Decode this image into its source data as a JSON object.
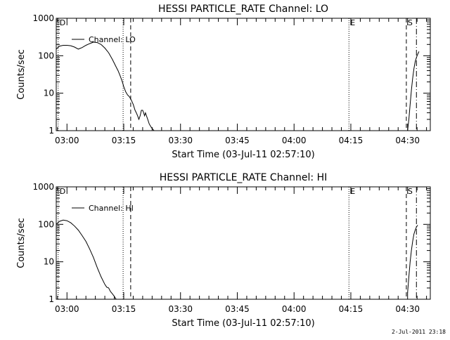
{
  "footer_date": "2-Jul-2011 23:18",
  "chart_data": [
    {
      "type": "line",
      "title": "HESSI PARTICLE_RATE Channel: LO",
      "xlabel": "Start Time (03-Jul-11 02:57:10)",
      "ylabel": "Counts/sec",
      "yscale": "log",
      "xlim": [
        "02:57:10",
        "04:36:00"
      ],
      "ylim": [
        1,
        1000
      ],
      "xticks": [
        "03:00",
        "03:15",
        "03:30",
        "03:45",
        "04:00",
        "04:15",
        "04:30"
      ],
      "yticks": [
        "1",
        "10",
        "100",
        "1000"
      ],
      "legend": {
        "label": "Channel: LO",
        "placement": "top-left"
      },
      "markers": [
        {
          "time": "02:57:40",
          "style": "dotted",
          "label": "D"
        },
        {
          "time": "03:14:50",
          "style": "dotted",
          "label": ""
        },
        {
          "time": "03:16:50",
          "style": "dashed",
          "label": ""
        },
        {
          "time": "04:14:30",
          "style": "dotted",
          "label": "E"
        },
        {
          "time": "04:29:40",
          "style": "dashed",
          "label": "S"
        },
        {
          "time": "04:32:20",
          "style": "dashdot",
          "label": ""
        }
      ],
      "series": [
        {
          "segments": [
            {
              "x": [
                "02:57:10",
                "02:58:00",
                "02:59:00",
                "03:00:00",
                "03:01:00",
                "03:02:00",
                "03:03:00",
                "03:04:00",
                "03:05:00",
                "03:06:00",
                "03:07:00",
                "03:08:00",
                "03:09:00",
                "03:10:00",
                "03:11:00",
                "03:12:00",
                "03:13:00",
                "03:13:30",
                "03:14:00",
                "03:14:30",
                "03:15:00",
                "03:15:30",
                "03:16:00",
                "03:16:30",
                "03:17:00",
                "03:17:30",
                "03:18:00",
                "03:18:20",
                "03:18:40",
                "03:19:00",
                "03:19:20",
                "03:19:40",
                "03:20:00",
                "03:20:15",
                "03:20:30",
                "03:20:45",
                "03:21:00",
                "03:21:20",
                "03:21:45",
                "03:22:20",
                "03:23:00"
              ],
              "y": [
                150,
                180,
                190,
                190,
                185,
                170,
                150,
                165,
                190,
                210,
                230,
                225,
                200,
                160,
                120,
                80,
                50,
                40,
                30,
                22,
                15,
                11,
                9,
                8,
                6.5,
                5,
                3.5,
                3,
                2.5,
                2,
                2.5,
                3.5,
                3.5,
                3,
                2.5,
                3,
                2.5,
                2,
                1.5,
                1.2,
                1
              ]
            },
            {
              "x": [
                "04:30:00",
                "04:30:20",
                "04:30:40",
                "04:31:00",
                "04:31:20",
                "04:31:40",
                "04:32:00",
                "04:32:20",
                "04:32:40",
                "04:33:00"
              ],
              "y": [
                1,
                2,
                5,
                12,
                25,
                45,
                70,
                90,
                110,
                130
              ]
            }
          ]
        }
      ]
    },
    {
      "type": "line",
      "title": "HESSI PARTICLE_RATE Channel: HI",
      "xlabel": "Start Time (03-Jul-11 02:57:10)",
      "ylabel": "Counts/sec",
      "yscale": "log",
      "xlim": [
        "02:57:10",
        "04:36:00"
      ],
      "ylim": [
        1,
        1000
      ],
      "xticks": [
        "03:00",
        "03:15",
        "03:30",
        "03:45",
        "04:00",
        "04:15",
        "04:30"
      ],
      "yticks": [
        "1",
        "10",
        "100",
        "1000"
      ],
      "legend": {
        "label": "Channel: HI",
        "placement": "top-left"
      },
      "markers": [
        {
          "time": "02:57:40",
          "style": "dotted",
          "label": "D"
        },
        {
          "time": "03:14:50",
          "style": "dotted",
          "label": ""
        },
        {
          "time": "03:16:50",
          "style": "dashed",
          "label": ""
        },
        {
          "time": "04:14:30",
          "style": "dotted",
          "label": "E"
        },
        {
          "time": "04:29:40",
          "style": "dashed",
          "label": "S"
        },
        {
          "time": "04:32:20",
          "style": "dashdot",
          "label": ""
        }
      ],
      "series": [
        {
          "segments": [
            {
              "x": [
                "02:57:10",
                "02:58:00",
                "02:59:00",
                "03:00:00",
                "03:01:00",
                "03:02:00",
                "03:03:00",
                "03:04:00",
                "03:05:00",
                "03:06:00",
                "03:07:00",
                "03:08:00",
                "03:09:00",
                "03:10:00",
                "03:10:30",
                "03:11:00",
                "03:11:30",
                "03:12:00",
                "03:12:30",
                "03:13:00"
              ],
              "y": [
                100,
                120,
                130,
                125,
                110,
                90,
                70,
                50,
                35,
                22,
                13,
                7,
                4,
                2.5,
                2.1,
                2,
                1.6,
                1.4,
                1.2,
                1
              ]
            },
            {
              "x": [
                "04:30:00",
                "04:30:20",
                "04:30:40",
                "04:31:00",
                "04:31:20",
                "04:31:40",
                "04:32:00",
                "04:32:20",
                "04:32:40"
              ],
              "y": [
                1.5,
                4,
                10,
                20,
                35,
                55,
                70,
                85,
                95
              ]
            }
          ]
        }
      ]
    }
  ]
}
